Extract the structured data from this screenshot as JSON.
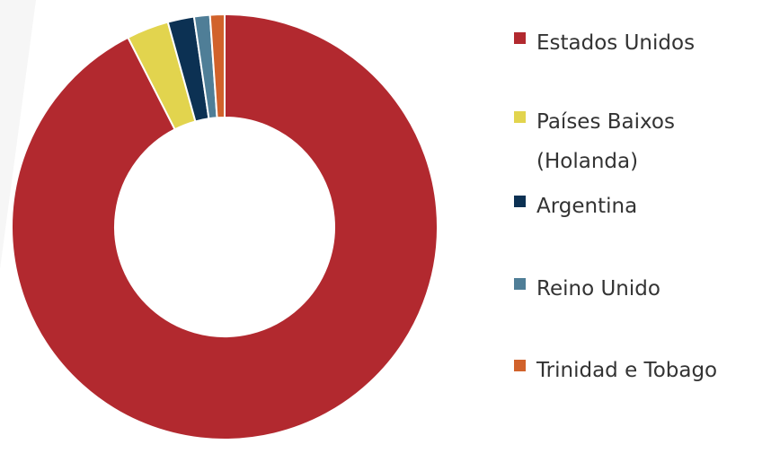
{
  "chart_data": {
    "type": "pie",
    "categories": [
      "Estados Unidos",
      "Países Baixos (Holanda)",
      "Argentina",
      "Reino Unido",
      "Trinidad e Tobago"
    ],
    "values": [
      92.5,
      3.2,
      2.0,
      1.2,
      1.1
    ],
    "colors": [
      "#b2292f",
      "#e2d44e",
      "#0c3153",
      "#4f7e97",
      "#d1622b"
    ],
    "donut": true
  }
}
